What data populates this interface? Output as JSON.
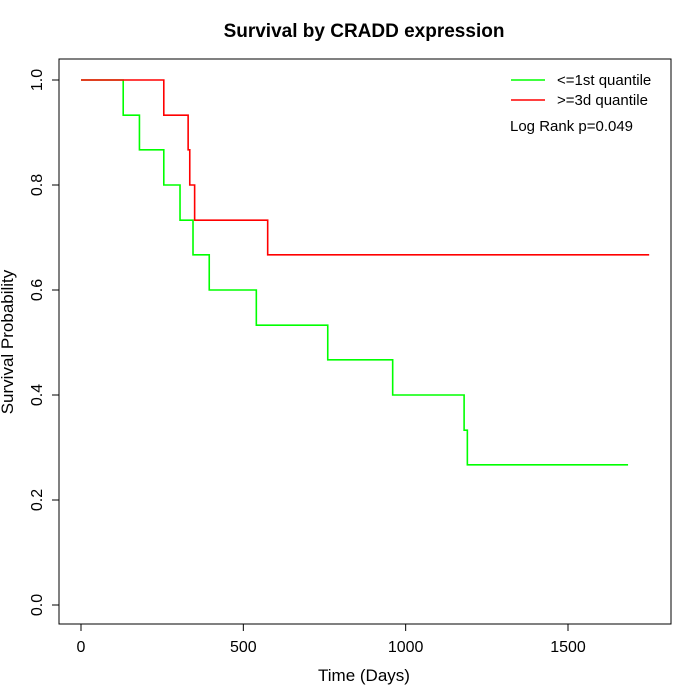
{
  "chart_data": {
    "type": "line",
    "step": true,
    "title": "Survival by CRADD expression",
    "xlabel": "Time (Days)",
    "ylabel": "Survival Probability",
    "xlim": [
      0,
      1750
    ],
    "ylim": [
      0,
      1.0
    ],
    "x_ticks": [
      0,
      500,
      1000,
      1500
    ],
    "y_ticks": [
      0.0,
      0.2,
      0.4,
      0.6,
      0.8,
      1.0
    ],
    "x_tick_labels": [
      "0",
      "500",
      "1000",
      "1500"
    ],
    "y_tick_labels": [
      "0.0",
      "0.2",
      "0.4",
      "0.6",
      "0.8",
      "1.0"
    ],
    "legend_position": "top-right",
    "annotation": "Log Rank p=0.049",
    "series": [
      {
        "name": "<=1st quantile",
        "color": "#00ff00",
        "x": [
          0,
          130,
          180,
          255,
          305,
          345,
          395,
          540,
          760,
          960,
          1180,
          1190,
          1685
        ],
        "y": [
          1.0,
          0.933,
          0.867,
          0.8,
          0.733,
          0.667,
          0.6,
          0.533,
          0.467,
          0.4,
          0.333,
          0.267,
          0.267
        ]
      },
      {
        "name": ">=3d quantile",
        "color": "#ff0000",
        "x": [
          0,
          255,
          330,
          335,
          350,
          575,
          1750
        ],
        "y": [
          1.0,
          0.933,
          0.867,
          0.8,
          0.733,
          0.667,
          0.667
        ]
      }
    ]
  }
}
